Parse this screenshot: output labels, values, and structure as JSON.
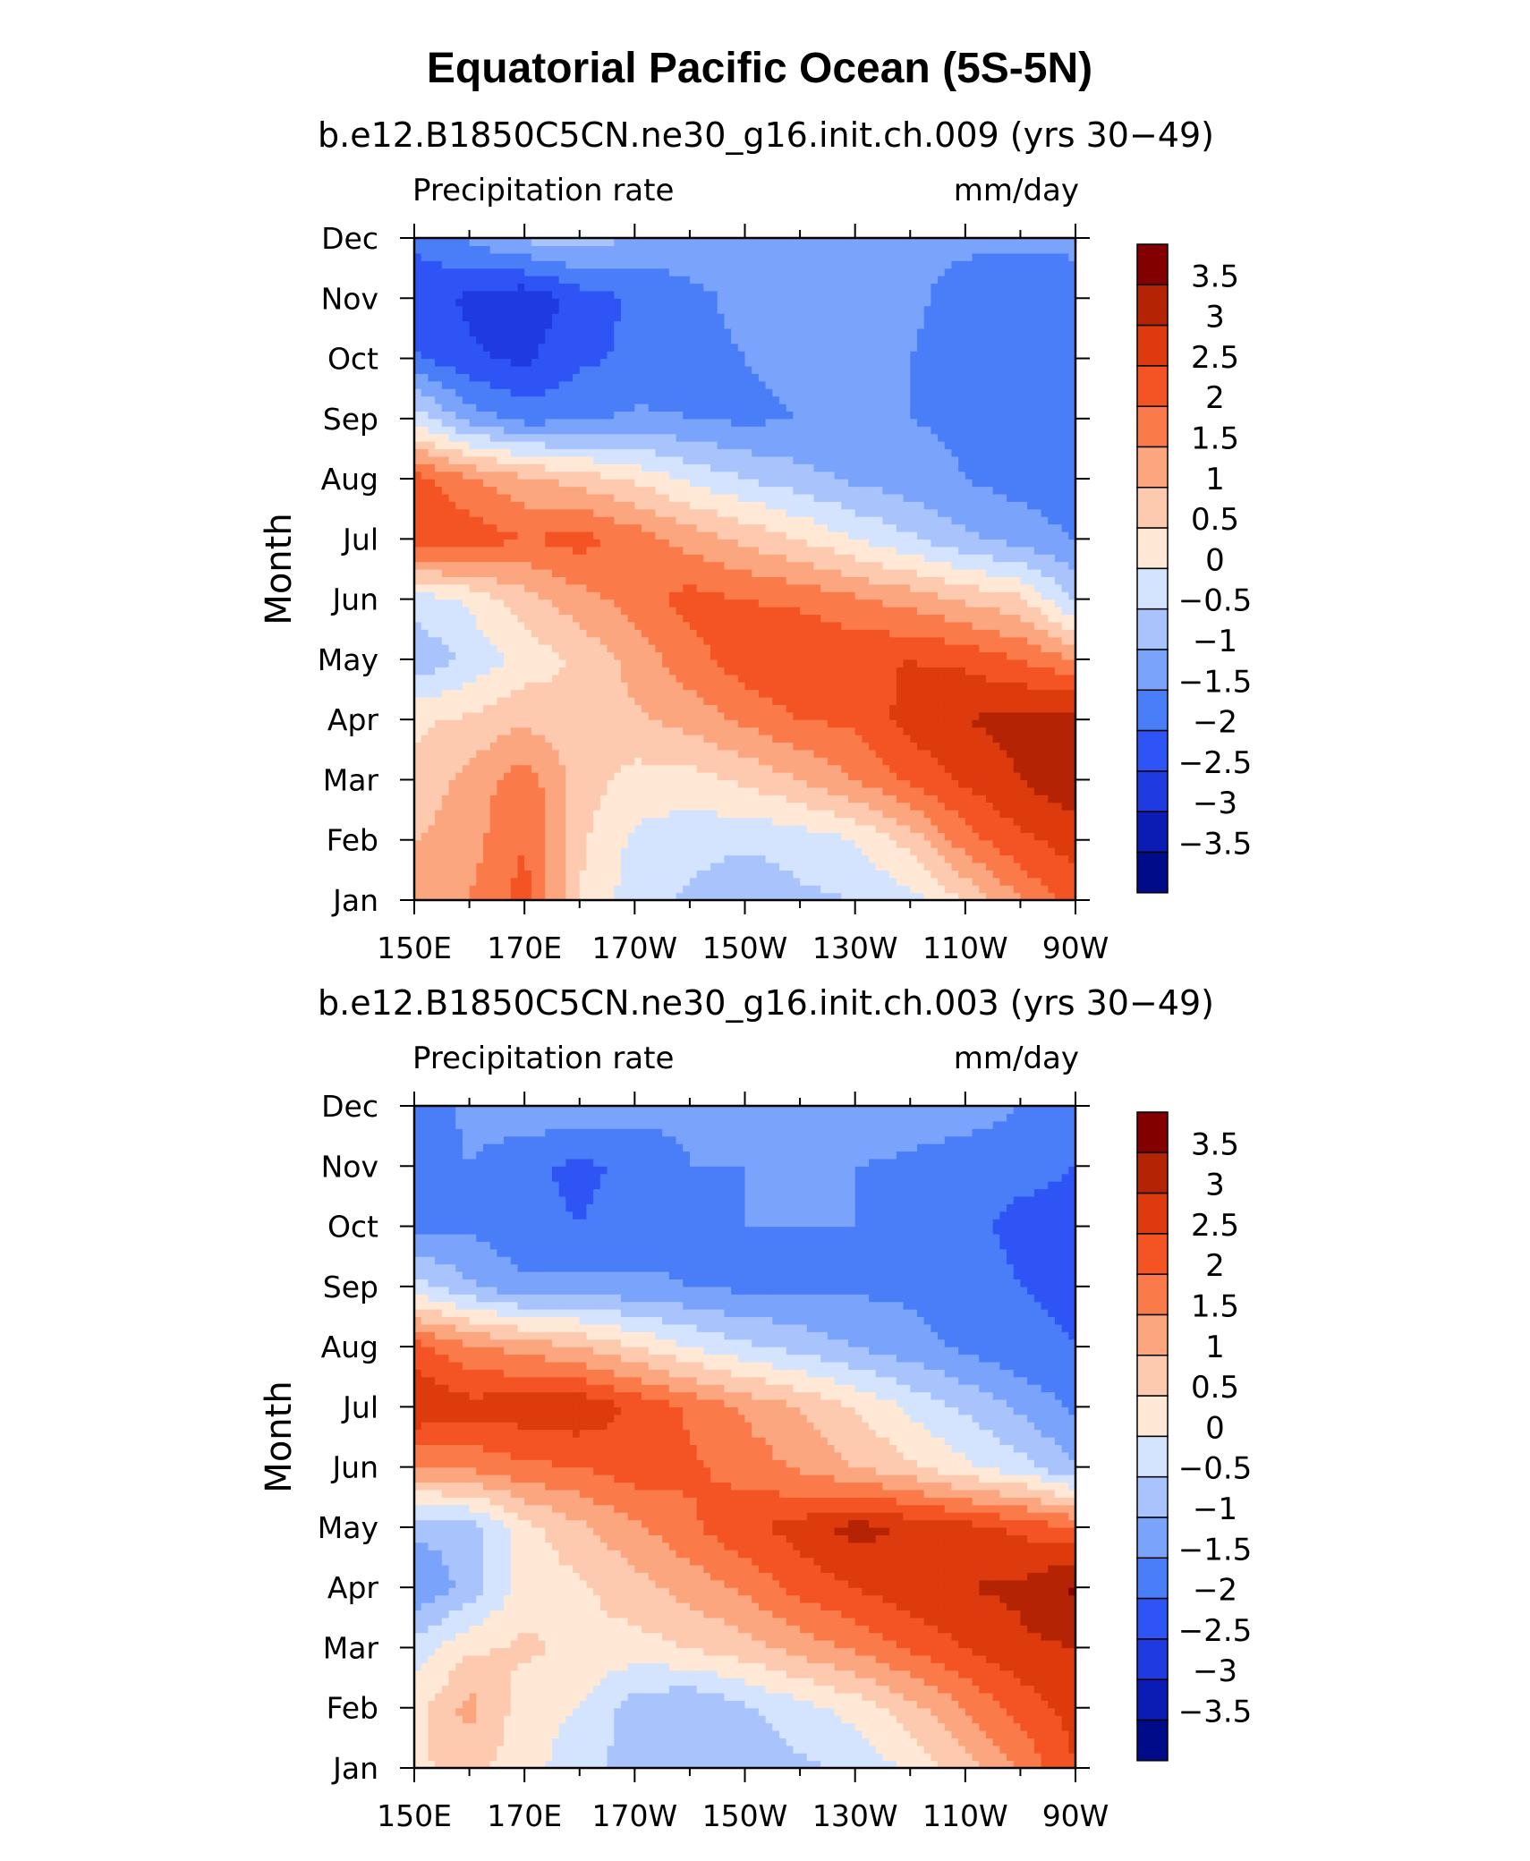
{
  "figure_title": "Equatorial Pacific Ocean (5S-5N)",
  "chart_data": [
    {
      "type": "heatmap",
      "title": "b.e12.B1850C5CN.ne30_g16.init.ch.009 (yrs 30−49)",
      "left_label": "Precipitation rate",
      "right_label": "mm/day",
      "ylabel": "Month",
      "xlabel": "",
      "x_tick_labels": [
        "150E",
        "170E",
        "170W",
        "150W",
        "130W",
        "110W",
        "90W"
      ],
      "x_lon_east": [
        150,
        170,
        190,
        210,
        230,
        250,
        270
      ],
      "xlim": [
        150,
        270
      ],
      "y_tick_labels": [
        "Jan",
        "Feb",
        "Mar",
        "Apr",
        "May",
        "Jun",
        "Jul",
        "Aug",
        "Sep",
        "Oct",
        "Nov",
        "Dec"
      ],
      "ylim": [
        1,
        12
      ],
      "colorbar_labels": [
        "3.5",
        "3",
        "2.5",
        "2",
        "1.5",
        "1",
        "0.5",
        "0",
        "−0.5",
        "−1",
        "−1.5",
        "−2",
        "−2.5",
        "−3",
        "−3.5"
      ],
      "lon_grid": [
        150,
        160,
        170,
        180,
        190,
        200,
        210,
        220,
        230,
        240,
        250,
        260,
        270
      ],
      "z_by_month": [
        [
          1.4,
          1.5,
          2.2,
          0.5,
          -0.3,
          -0.6,
          -0.9,
          -0.6,
          -0.5,
          -0.2,
          0.5,
          1.5,
          2.3
        ],
        [
          1.0,
          1.3,
          2.0,
          0.6,
          -0.1,
          -0.3,
          -0.4,
          -0.3,
          0.0,
          0.7,
          1.8,
          2.4,
          2.7
        ],
        [
          0.6,
          1.2,
          1.8,
          0.8,
          0.3,
          0.3,
          0.6,
          1.0,
          1.5,
          2.1,
          2.6,
          3.0,
          3.4
        ],
        [
          0.4,
          0.6,
          0.9,
          0.6,
          0.9,
          1.2,
          1.6,
          2.0,
          2.1,
          2.7,
          3.0,
          3.2,
          3.3
        ],
        [
          -0.9,
          -0.4,
          0.2,
          0.6,
          1.2,
          1.8,
          2.3,
          2.5,
          2.4,
          2.5,
          2.4,
          2.0,
          1.5
        ],
        [
          -0.3,
          0.1,
          0.8,
          1.3,
          1.7,
          2.2,
          2.0,
          1.9,
          1.6,
          1.3,
          0.9,
          0.6,
          -0.6
        ],
        [
          2.5,
          2.3,
          2.0,
          2.2,
          1.8,
          1.3,
          0.9,
          0.5,
          0.0,
          -0.4,
          -0.9,
          -1.2,
          -1.5
        ],
        [
          2.2,
          1.6,
          1.1,
          0.8,
          0.4,
          -0.1,
          -0.5,
          -0.8,
          -1.1,
          -1.3,
          -1.5,
          -1.7,
          -1.9
        ],
        [
          -0.2,
          -1.2,
          -1.7,
          -1.6,
          -1.4,
          -1.5,
          -1.6,
          -1.5,
          -1.4,
          -1.5,
          -1.6,
          -1.8,
          -2.0
        ],
        [
          -1.9,
          -2.4,
          -2.6,
          -2.1,
          -1.9,
          -1.6,
          -1.5,
          -1.4,
          -1.4,
          -1.5,
          -1.7,
          -2.0,
          -1.9
        ],
        [
          -2.3,
          -2.6,
          -2.9,
          -2.3,
          -1.9,
          -1.6,
          -1.4,
          -1.3,
          -1.3,
          -1.4,
          -1.7,
          -1.9,
          -1.7
        ],
        [
          -1.9,
          -1.4,
          -0.9,
          -0.7,
          -1.1,
          -1.3,
          -1.4,
          -1.4,
          -1.4,
          -1.4,
          -1.4,
          -1.4,
          -1.4
        ]
      ]
    },
    {
      "type": "heatmap",
      "title": "b.e12.B1850C5CN.ne30_g16.init.ch.003 (yrs 30−49)",
      "left_label": "Precipitation rate",
      "right_label": "mm/day",
      "ylabel": "Month",
      "xlabel": "",
      "x_tick_labels": [
        "150E",
        "170E",
        "170W",
        "150W",
        "130W",
        "110W",
        "90W"
      ],
      "x_lon_east": [
        150,
        170,
        190,
        210,
        230,
        250,
        270
      ],
      "xlim": [
        150,
        270
      ],
      "y_tick_labels": [
        "Jan",
        "Feb",
        "Mar",
        "Apr",
        "May",
        "Jun",
        "Jul",
        "Aug",
        "Sep",
        "Oct",
        "Nov",
        "Dec"
      ],
      "ylim": [
        1,
        12
      ],
      "colorbar_labels": [
        "3.5",
        "3",
        "2.5",
        "2",
        "1.5",
        "1",
        "0.5",
        "0",
        "−0.5",
        "−1",
        "−1.5",
        "−2",
        "−2.5",
        "−3",
        "−3.5"
      ],
      "lon_grid": [
        150,
        160,
        170,
        180,
        190,
        200,
        210,
        220,
        230,
        240,
        250,
        260,
        270
      ],
      "z_by_month": [
        [
          0.4,
          0.7,
          0.2,
          -0.3,
          -0.7,
          -0.9,
          -1.0,
          -0.6,
          -0.4,
          0.1,
          0.8,
          1.6,
          2.5
        ],
        [
          0.3,
          1.2,
          0.2,
          0.0,
          -0.8,
          -1.0,
          -0.6,
          -0.2,
          0.2,
          0.8,
          1.5,
          2.2,
          2.7
        ],
        [
          -0.3,
          0.4,
          0.6,
          0.4,
          0.3,
          0.5,
          0.8,
          1.2,
          1.6,
          2.1,
          2.5,
          2.9,
          3.0
        ],
        [
          -1.5,
          -0.8,
          0.2,
          0.4,
          0.8,
          1.2,
          1.6,
          2.2,
          2.5,
          2.8,
          3.0,
          3.1,
          3.6
        ],
        [
          -0.9,
          -0.8,
          0.3,
          0.9,
          1.4,
          1.9,
          2.4,
          2.7,
          3.2,
          2.9,
          2.7,
          2.4,
          2.0
        ],
        [
          1.5,
          1.6,
          1.9,
          2.0,
          2.3,
          2.1,
          1.8,
          1.4,
          1.0,
          0.6,
          0.1,
          -0.3,
          -1.0
        ],
        [
          3.0,
          2.7,
          2.8,
          2.9,
          2.4,
          1.9,
          1.4,
          1.0,
          0.5,
          -0.1,
          -0.6,
          -1.1,
          -1.6
        ],
        [
          2.2,
          1.6,
          1.3,
          1.0,
          0.5,
          0.0,
          -0.4,
          -0.7,
          -1.0,
          -1.3,
          -1.6,
          -1.9,
          -2.0
        ],
        [
          -0.3,
          -0.9,
          -1.4,
          -1.3,
          -1.4,
          -1.5,
          -1.6,
          -1.6,
          -1.6,
          -1.6,
          -1.8,
          -2.0,
          -2.1
        ],
        [
          -1.6,
          -1.6,
          -1.9,
          -2.0,
          -1.8,
          -1.6,
          -1.5,
          -1.5,
          -1.5,
          -1.6,
          -1.9,
          -2.1,
          -2.1
        ],
        [
          -2.0,
          -1.5,
          -1.9,
          -2.1,
          -1.9,
          -1.5,
          -1.5,
          -1.5,
          -1.5,
          -1.6,
          -1.8,
          -1.9,
          -2.0
        ],
        [
          -2.0,
          -1.3,
          -1.1,
          -1.2,
          -1.3,
          -1.4,
          -1.4,
          -1.3,
          -1.2,
          -1.2,
          -1.2,
          -1.5,
          -1.7
        ]
      ]
    }
  ],
  "colors": {
    "levels": [
      -3.5,
      -3,
      -2.5,
      -2,
      -1.5,
      -1,
      -0.5,
      0,
      0.5,
      1,
      1.5,
      2,
      2.5,
      3,
      3.5
    ],
    "palette": [
      "#000b8a",
      "#0b1cb4",
      "#1f3ae0",
      "#2e54f5",
      "#4a7ef8",
      "#7aa4fb",
      "#a9c4fd",
      "#d4e4fe",
      "#ffe8d5",
      "#fdcab0",
      "#fca680",
      "#fb7a4a",
      "#f45424",
      "#dd3b0d",
      "#b52305",
      "#820000"
    ]
  }
}
